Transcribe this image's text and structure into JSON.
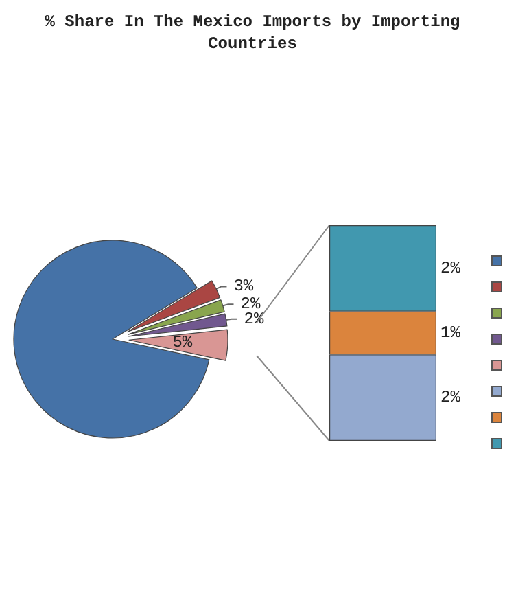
{
  "chart_data": [
    {
      "type": "pie",
      "title": "% Share In The Mexico Imports by Importing Countries",
      "categories": [
        null,
        null,
        null,
        null,
        null
      ],
      "values": [
        88,
        3,
        2,
        2,
        5
      ],
      "colors": [
        "#4572a7",
        "#aa4643",
        "#89a54e",
        "#71588f",
        "#d99694"
      ],
      "value_labels": [
        null,
        "3%",
        "2%",
        "2%",
        "5%"
      ]
    },
    {
      "type": "bar",
      "stacked": true,
      "categories": [
        null
      ],
      "series": [
        {
          "color": "#93a9cf",
          "values": [
            2
          ],
          "value_labels": [
            "2%"
          ]
        },
        {
          "color": "#db843d",
          "values": [
            1
          ],
          "value_labels": [
            "1%"
          ]
        },
        {
          "color": "#4198af",
          "values": [
            2
          ],
          "value_labels": [
            "2%"
          ]
        }
      ]
    }
  ]
}
